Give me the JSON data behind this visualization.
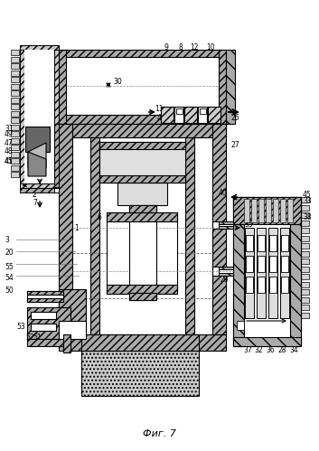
{
  "title": "Фиг. 7",
  "bg_color": "#ffffff",
  "fig_width": 3.53,
  "fig_height": 4.99,
  "dpi": 100,
  "hatch_color": "#555555"
}
